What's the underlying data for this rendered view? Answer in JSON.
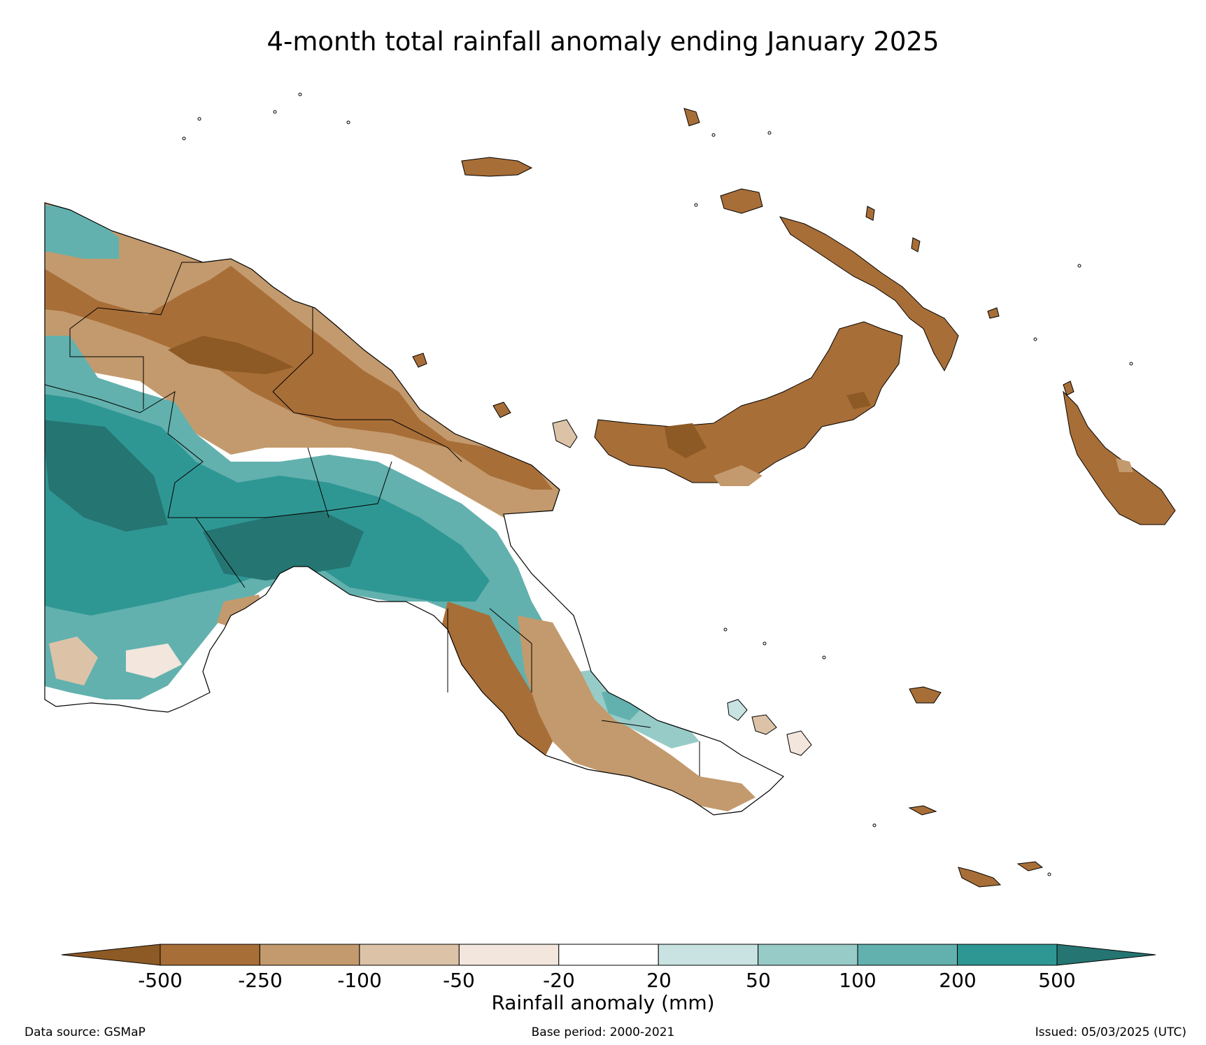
{
  "title": "4-month total rainfall anomaly ending January 2025",
  "colorbar": {
    "label": "Rainfall anomaly (mm)",
    "ticks": [
      "-500",
      "-250",
      "-100",
      "-50",
      "-20",
      "20",
      "50",
      "100",
      "200",
      "500"
    ],
    "colors": {
      "extend_low": "#8d5a25",
      "bins": [
        "#a86e37",
        "#c39a6d",
        "#dcc3a8",
        "#f2e6dd",
        "#ffffff",
        "#c8e3e1",
        "#97cbc8",
        "#62b1ae",
        "#2f9793"
      ],
      "extend_high": "#257572"
    }
  },
  "map_colors": {
    "deep_brown": "#8d5a25",
    "brown": "#a86e37",
    "tan": "#c39a6d",
    "light_tan": "#dcc3a8",
    "cream": "#f2e6dd",
    "pale_teal": "#c8e3e1",
    "light_teal": "#97cbc8",
    "teal": "#62b1ae",
    "dark_teal": "#2f9793",
    "deep_teal": "#257572",
    "border": "#000000"
  },
  "footer": {
    "source": "Data source: GSMaP",
    "base_period": "Base period: 2000-2021",
    "issued": "Issued: 05/03/2025 (UTC)"
  }
}
